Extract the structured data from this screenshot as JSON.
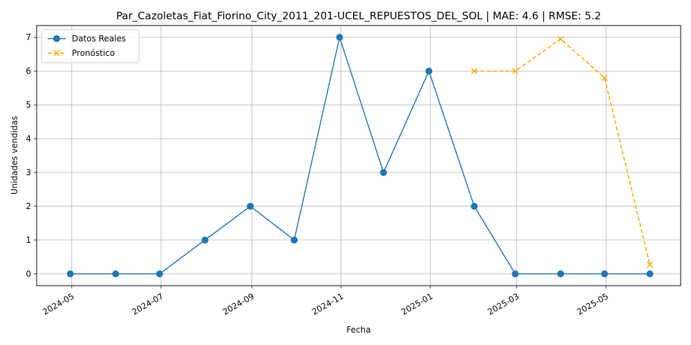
{
  "chart_data": {
    "type": "line",
    "title": "Par_Cazoletas_Fiat_Fiorino_City_2011_201-UCEL_REPUESTOS_DEL_SOL | MAE: 4.6 | RMSE: 5.2",
    "xlabel": "Fecha",
    "ylabel": "Unidades vendidas",
    "xlim": [
      "2024-04-07",
      "2025-06-21"
    ],
    "ylim": [
      -0.35,
      7.35
    ],
    "x_ticks": [
      "2024-05",
      "2024-07",
      "2024-09",
      "2024-11",
      "2025-01",
      "2025-03",
      "2025-05"
    ],
    "y_ticks": [
      0,
      1,
      2,
      3,
      4,
      5,
      6,
      7
    ],
    "grid": true,
    "legend_position": "upper-left",
    "series": [
      {
        "name": "Datos Reales",
        "color": "#1f77b4",
        "line_style": "solid",
        "marker": "circle",
        "x": [
          "2024-04-30",
          "2024-05-31",
          "2024-06-30",
          "2024-07-31",
          "2024-08-31",
          "2024-09-30",
          "2024-10-31",
          "2024-11-30",
          "2024-12-31",
          "2025-01-31",
          "2025-02-28",
          "2025-03-31",
          "2025-04-30",
          "2025-05-31"
        ],
        "values": [
          0,
          0,
          0,
          1,
          2,
          1,
          7,
          3,
          6,
          2,
          0,
          0,
          0,
          0
        ]
      },
      {
        "name": "Pronóstico",
        "color": "#ffa500",
        "line_style": "dashed",
        "marker": "x",
        "x": [
          "2025-01-31",
          "2025-02-28",
          "2025-03-31",
          "2025-04-30",
          "2025-05-31"
        ],
        "values": [
          6.0,
          6.0,
          6.95,
          5.8,
          0.27
        ]
      }
    ]
  }
}
